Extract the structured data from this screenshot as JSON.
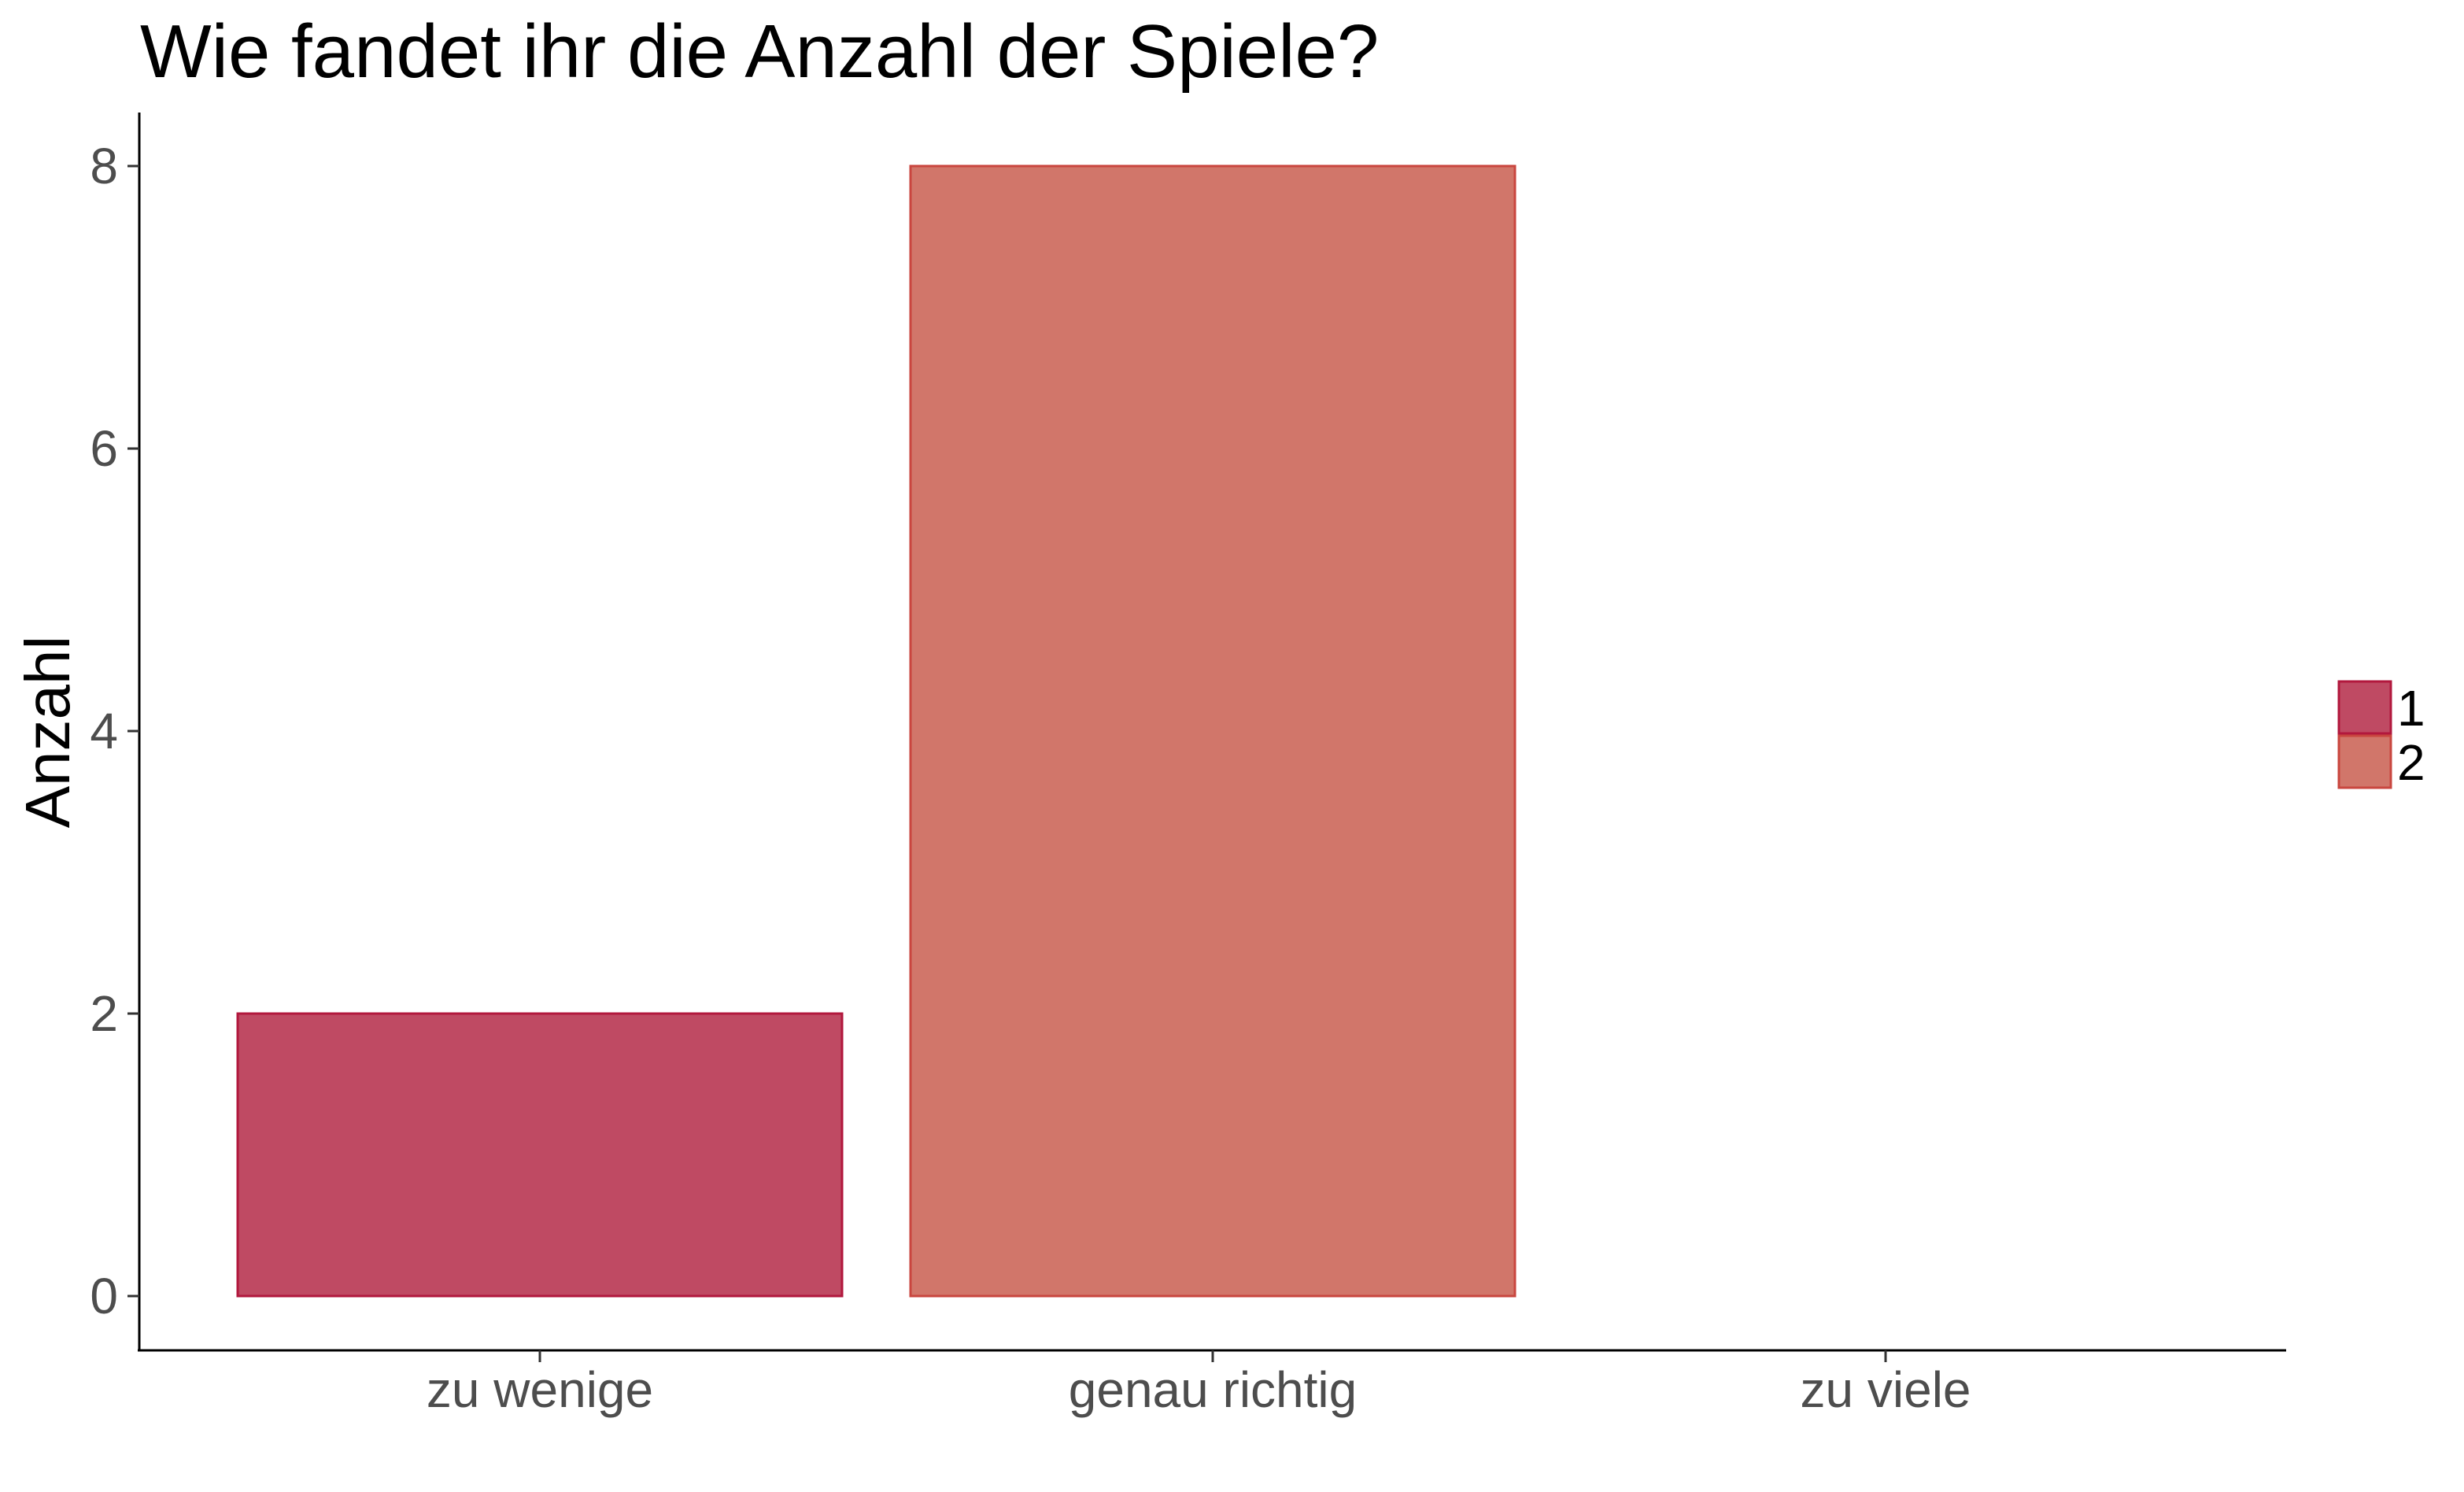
{
  "chart_data": {
    "type": "bar",
    "title": "Wie fandet ihr die Anzahl der Spiele?",
    "xlabel": "",
    "ylabel": "Anzahl",
    "categories": [
      "zu wenige",
      "genau richtig",
      "zu viele"
    ],
    "bars": [
      {
        "category": "zu wenige",
        "value": 2,
        "group": "1"
      },
      {
        "category": "genau richtig",
        "value": 8,
        "group": "2"
      }
    ],
    "ylim": [
      0,
      8
    ],
    "yticks": [
      0,
      2,
      4,
      6,
      8
    ],
    "grid": false,
    "legend": {
      "placement": "right",
      "entries": [
        {
          "label": "1",
          "fill": "#bf4a63",
          "stroke": "#b2183d"
        },
        {
          "label": "2",
          "fill": "#d1766a",
          "stroke": "#c9463f"
        }
      ]
    }
  }
}
